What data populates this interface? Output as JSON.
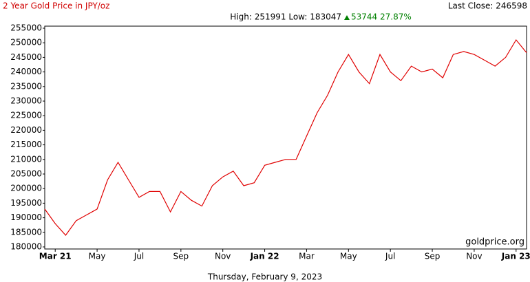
{
  "chart_data": {
    "type": "line",
    "title": "2 Year Gold Price in JPY/oz",
    "last_close": "Last Close: 246598",
    "high_low": "High: 251991 Low: 183047",
    "change": "53744 27.87%",
    "watermark": "goldprice.org",
    "date": "Thursday, February 9, 2023",
    "categories": [
      null,
      "Mar 21",
      null,
      null,
      null,
      "May",
      null,
      null,
      null,
      "Jul",
      null,
      null,
      null,
      "Sep",
      null,
      null,
      null,
      "Nov",
      null,
      null,
      null,
      "Jan 22",
      null,
      null,
      null,
      "Mar",
      null,
      null,
      null,
      "May",
      null,
      null,
      null,
      "Jul",
      null,
      null,
      null,
      "Sep",
      null,
      null,
      null,
      "Nov",
      null,
      null,
      null,
      "Jan 23",
      null
    ],
    "series": [
      {
        "name": "Gold price",
        "color": "#e00000",
        "values": [
          193000,
          188000,
          184000,
          189000,
          191000,
          193000,
          203000,
          209000,
          203000,
          197000,
          199000,
          199000,
          192000,
          199000,
          196000,
          194000,
          201000,
          204000,
          206000,
          201000,
          202000,
          208000,
          209000,
          210000,
          210000,
          218000,
          226000,
          232000,
          240000,
          246000,
          240000,
          236000,
          246000,
          240000,
          237000,
          242000,
          240000,
          241000,
          238000,
          246000,
          247000,
          246000,
          244000,
          242000,
          245000,
          251000,
          246598
        ]
      }
    ],
    "ylim": [
      180000,
      255000
    ],
    "yticks": [
      180000,
      185000,
      190000,
      195000,
      200000,
      205000,
      210000,
      215000,
      220000,
      225000,
      230000,
      235000,
      240000,
      245000,
      250000,
      255000
    ],
    "grid": false
  }
}
